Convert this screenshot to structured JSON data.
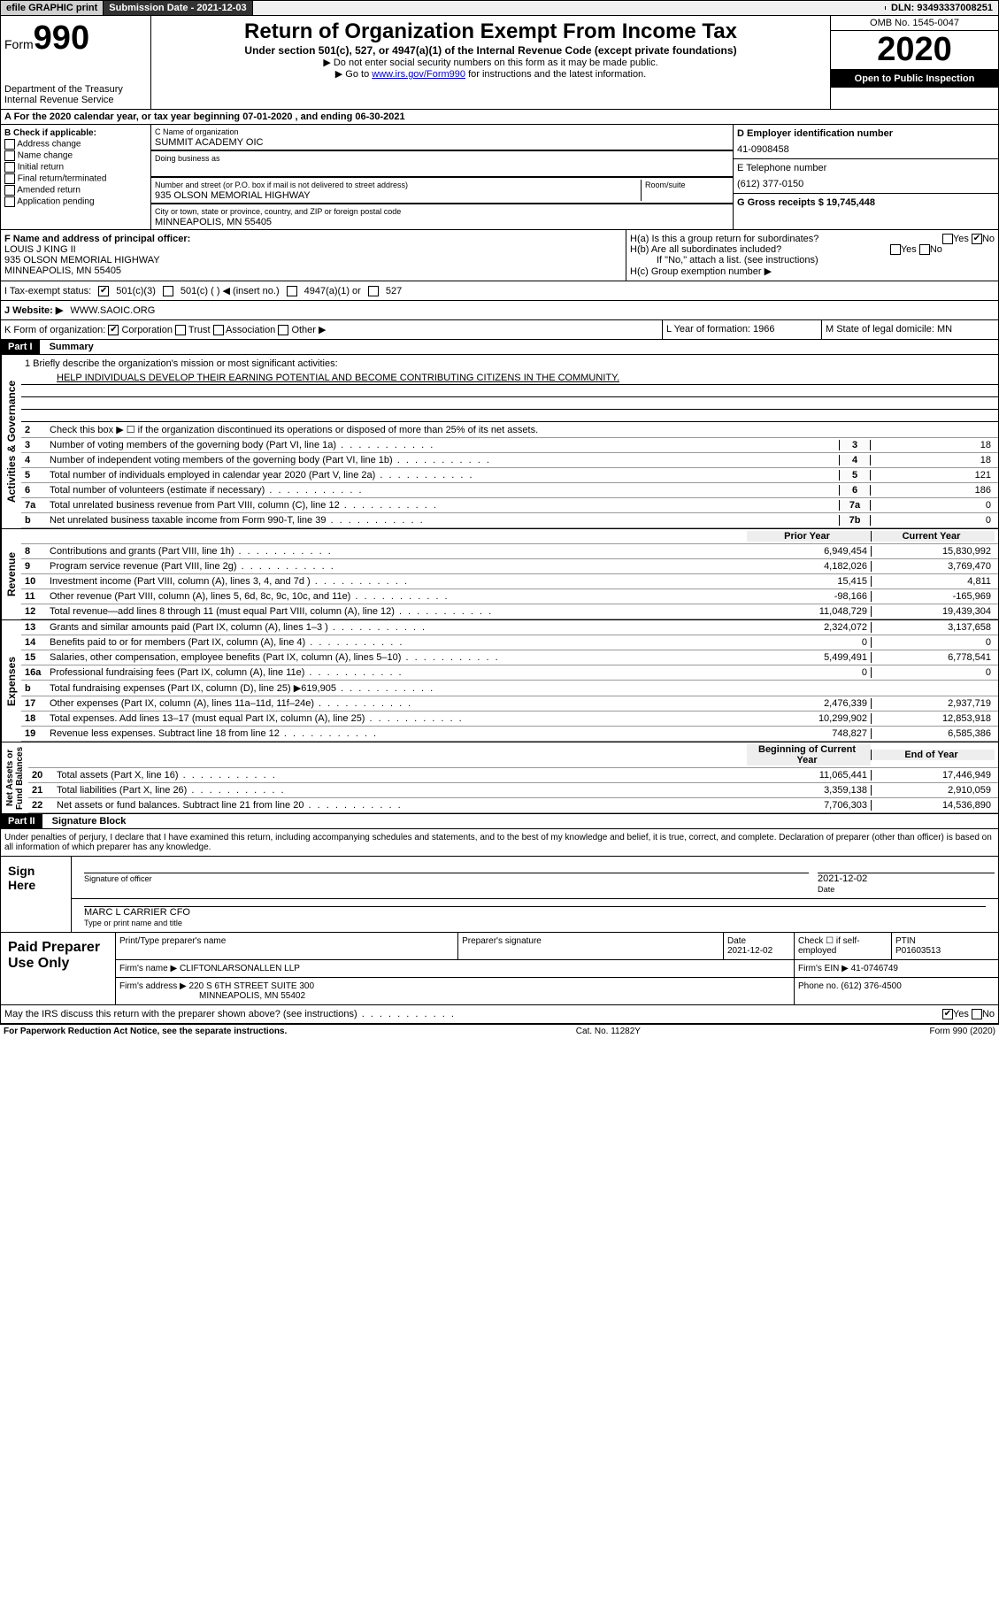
{
  "topbar": {
    "efile": "efile GRAPHIC print",
    "sub_label": "Submission Date - 2021-12-03",
    "dln": "DLN: 93493337008251"
  },
  "header": {
    "form_label": "Form",
    "form_num": "990",
    "dept": "Department of the Treasury\nInternal Revenue Service",
    "title": "Return of Organization Exempt From Income Tax",
    "subtitle": "Under section 501(c), 527, or 4947(a)(1) of the Internal Revenue Code (except private foundations)",
    "note1": "▶ Do not enter social security numbers on this form as it may be made public.",
    "note2_pre": "▶ Go to ",
    "note2_link": "www.irs.gov/Form990",
    "note2_post": " for instructions and the latest information.",
    "omb": "OMB No. 1545-0047",
    "year": "2020",
    "open": "Open to Public Inspection"
  },
  "row_a": {
    "text": "A For the 2020 calendar year, or tax year beginning 07-01-2020   , and ending 06-30-2021"
  },
  "section_b": {
    "title": "B Check if applicable:",
    "opts": [
      "Address change",
      "Name change",
      "Initial return",
      "Final return/terminated",
      "Amended return",
      "Application pending"
    ]
  },
  "section_c": {
    "name_label": "C Name of organization",
    "name": "SUMMIT ACADEMY OIC",
    "dba_label": "Doing business as",
    "addr_label": "Number and street (or P.O. box if mail is not delivered to street address)",
    "room_label": "Room/suite",
    "addr": "935 OLSON MEMORIAL HIGHWAY",
    "city_label": "City or town, state or province, country, and ZIP or foreign postal code",
    "city": "MINNEAPOLIS, MN  55405"
  },
  "section_d": {
    "ein_label": "D Employer identification number",
    "ein": "41-0908458",
    "tel_label": "E Telephone number",
    "tel": "(612) 377-0150",
    "gross_label": "G Gross receipts $ 19,745,448"
  },
  "section_f": {
    "label": "F Name and address of principal officer:",
    "name": "LOUIS J KING II",
    "addr1": "935 OLSON MEMORIAL HIGHWAY",
    "addr2": "MINNEAPOLIS, MN  55405"
  },
  "section_h": {
    "ha": "H(a)  Is this a group return for subordinates?",
    "hb": "H(b)  Are all subordinates included?",
    "hb_note": "If \"No,\" attach a list. (see instructions)",
    "hc": "H(c)  Group exemption number ▶"
  },
  "row_i": {
    "label": "I  Tax-exempt status:",
    "opts": [
      "501(c)(3)",
      "501(c) (  ) ◀ (insert no.)",
      "4947(a)(1) or",
      "527"
    ]
  },
  "row_j": {
    "label": "J  Website: ▶",
    "val": "WWW.SAOIC.ORG"
  },
  "row_k": {
    "label": "K Form of organization:",
    "opts": [
      "Corporation",
      "Trust",
      "Association",
      "Other ▶"
    ],
    "l_label": "L Year of formation: 1966",
    "m_label": "M State of legal domicile: MN"
  },
  "part1": {
    "header": "Part I",
    "title": "Summary",
    "q1": "1 Briefly describe the organization's mission or most significant activities:",
    "mission": "HELP INDIVIDUALS DEVELOP THEIR EARNING POTENTIAL AND BECOME CONTRIBUTING CITIZENS IN THE COMMUNITY.",
    "q2": "Check this box ▶ ☐ if the organization discontinued its operations or disposed of more than 25% of its net assets.",
    "lines_gov": [
      {
        "n": "3",
        "d": "Number of voting members of the governing body (Part VI, line 1a)",
        "b": "3",
        "v": "18"
      },
      {
        "n": "4",
        "d": "Number of independent voting members of the governing body (Part VI, line 1b)",
        "b": "4",
        "v": "18"
      },
      {
        "n": "5",
        "d": "Total number of individuals employed in calendar year 2020 (Part V, line 2a)",
        "b": "5",
        "v": "121"
      },
      {
        "n": "6",
        "d": "Total number of volunteers (estimate if necessary)",
        "b": "6",
        "v": "186"
      },
      {
        "n": "7a",
        "d": "Total unrelated business revenue from Part VIII, column (C), line 12",
        "b": "7a",
        "v": "0"
      },
      {
        "n": "b",
        "d": "Net unrelated business taxable income from Form 990-T, line 39",
        "b": "7b",
        "v": "0"
      }
    ],
    "prior": "Prior Year",
    "current": "Current Year",
    "lines_rev": [
      {
        "n": "8",
        "d": "Contributions and grants (Part VIII, line 1h)",
        "p": "6,949,454",
        "c": "15,830,992"
      },
      {
        "n": "9",
        "d": "Program service revenue (Part VIII, line 2g)",
        "p": "4,182,026",
        "c": "3,769,470"
      },
      {
        "n": "10",
        "d": "Investment income (Part VIII, column (A), lines 3, 4, and 7d )",
        "p": "15,415",
        "c": "4,811"
      },
      {
        "n": "11",
        "d": "Other revenue (Part VIII, column (A), lines 5, 6d, 8c, 9c, 10c, and 11e)",
        "p": "-98,166",
        "c": "-165,969"
      },
      {
        "n": "12",
        "d": "Total revenue—add lines 8 through 11 (must equal Part VIII, column (A), line 12)",
        "p": "11,048,729",
        "c": "19,439,304"
      }
    ],
    "lines_exp": [
      {
        "n": "13",
        "d": "Grants and similar amounts paid (Part IX, column (A), lines 1–3 )",
        "p": "2,324,072",
        "c": "3,137,658"
      },
      {
        "n": "14",
        "d": "Benefits paid to or for members (Part IX, column (A), line 4)",
        "p": "0",
        "c": "0"
      },
      {
        "n": "15",
        "d": "Salaries, other compensation, employee benefits (Part IX, column (A), lines 5–10)",
        "p": "5,499,491",
        "c": "6,778,541"
      },
      {
        "n": "16a",
        "d": "Professional fundraising fees (Part IX, column (A), line 11e)",
        "p": "0",
        "c": "0"
      },
      {
        "n": "b",
        "d": "Total fundraising expenses (Part IX, column (D), line 25) ▶619,905",
        "p": "",
        "c": ""
      },
      {
        "n": "17",
        "d": "Other expenses (Part IX, column (A), lines 11a–11d, 11f–24e)",
        "p": "2,476,339",
        "c": "2,937,719"
      },
      {
        "n": "18",
        "d": "Total expenses. Add lines 13–17 (must equal Part IX, column (A), line 25)",
        "p": "10,299,902",
        "c": "12,853,918"
      },
      {
        "n": "19",
        "d": "Revenue less expenses. Subtract line 18 from line 12",
        "p": "748,827",
        "c": "6,585,386"
      }
    ],
    "begin": "Beginning of Current Year",
    "end": "End of Year",
    "lines_net": [
      {
        "n": "20",
        "d": "Total assets (Part X, line 16)",
        "p": "11,065,441",
        "c": "17,446,949"
      },
      {
        "n": "21",
        "d": "Total liabilities (Part X, line 26)",
        "p": "3,359,138",
        "c": "2,910,059"
      },
      {
        "n": "22",
        "d": "Net assets or fund balances. Subtract line 21 from line 20",
        "p": "7,706,303",
        "c": "14,536,890"
      }
    ]
  },
  "part2": {
    "header": "Part II",
    "title": "Signature Block",
    "decl": "Under penalties of perjury, I declare that I have examined this return, including accompanying schedules and statements, and to the best of my knowledge and belief, it is true, correct, and complete. Declaration of preparer (other than officer) is based on all information of which preparer has any knowledge.",
    "sign_here": "Sign Here",
    "sig_officer": "Signature of officer",
    "sig_date": "2021-12-02",
    "date_label": "Date",
    "officer_name": "MARC L CARRIER  CFO",
    "type_name": "Type or print name and title",
    "paid": "Paid Preparer Use Only",
    "col1": "Print/Type preparer's name",
    "col2": "Preparer's signature",
    "col3_date": "Date",
    "col3_val": "2021-12-02",
    "col4": "Check ☐ if self-employed",
    "col5_label": "PTIN",
    "col5_val": "P01603513",
    "firm_name_label": "Firm's name    ▶",
    "firm_name": "CLIFTONLARSONALLEN LLP",
    "firm_ein_label": "Firm's EIN ▶",
    "firm_ein": "41-0746749",
    "firm_addr_label": "Firm's address ▶",
    "firm_addr": "220 S 6TH STREET SUITE 300",
    "firm_city": "MINNEAPOLIS, MN  55402",
    "phone_label": "Phone no.",
    "phone": "(612) 376-4500",
    "discuss": "May the IRS discuss this return with the preparer shown above? (see instructions)"
  },
  "footer": {
    "left": "For Paperwork Reduction Act Notice, see the separate instructions.",
    "mid": "Cat. No. 11282Y",
    "right": "Form 990 (2020)"
  }
}
